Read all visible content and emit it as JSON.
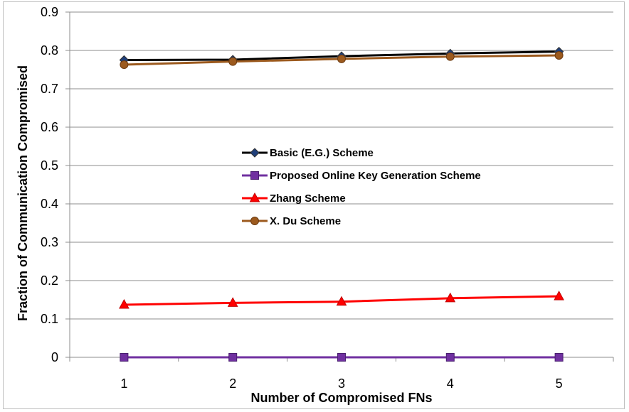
{
  "chart_data": {
    "type": "line",
    "title": "",
    "xlabel": "Number of Compromised FNs",
    "ylabel": "Fraction of Communication Compromised",
    "x": [
      1,
      2,
      3,
      4,
      5
    ],
    "xticks": [
      "1",
      "2",
      "3",
      "4",
      "5"
    ],
    "ylim": [
      0,
      0.9
    ],
    "yticks": [
      "0",
      "0.1",
      "0.2",
      "0.3",
      "0.4",
      "0.5",
      "0.6",
      "0.7",
      "0.8",
      "0.9"
    ],
    "grid": "horizontal",
    "legend_position": "center",
    "series": [
      {
        "name": "Basic (E.G.) Scheme",
        "values": [
          0.775,
          0.776,
          0.785,
          0.792,
          0.797
        ],
        "color": "#000000",
        "marker": "diamond"
      },
      {
        "name": "Proposed Online Key Generation Scheme",
        "values": [
          0,
          0,
          0,
          0,
          0
        ],
        "color": "#7030a0",
        "marker": "square"
      },
      {
        "name": "Zhang Scheme",
        "values": [
          0.137,
          0.142,
          0.145,
          0.154,
          0.159
        ],
        "color": "#ff0000",
        "marker": "triangle"
      },
      {
        "name": "X. Du Scheme",
        "values": [
          0.763,
          0.771,
          0.778,
          0.784,
          0.787
        ],
        "color": "#9c5a1e",
        "marker": "circle"
      }
    ]
  }
}
